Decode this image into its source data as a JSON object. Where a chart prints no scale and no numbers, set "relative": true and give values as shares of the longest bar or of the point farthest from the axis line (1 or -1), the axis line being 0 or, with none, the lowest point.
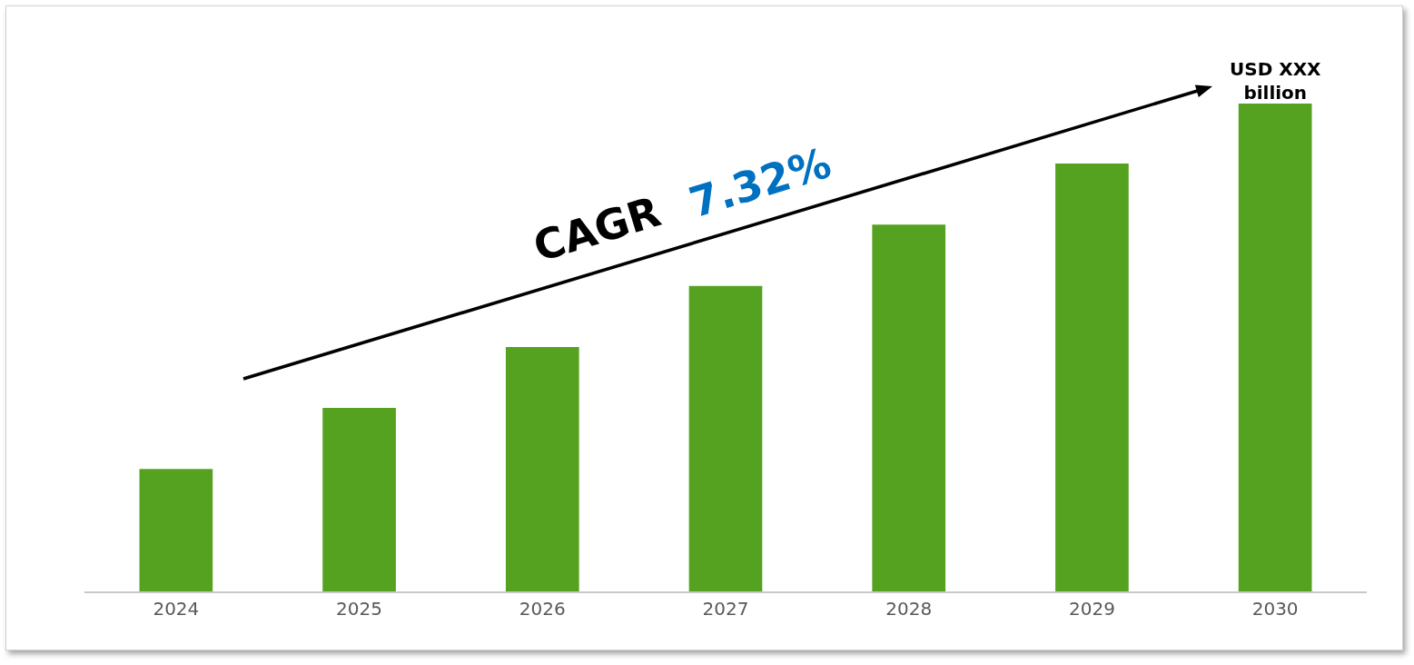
{
  "chart_data": {
    "type": "bar",
    "relative": true,
    "categories": [
      "2024",
      "2025",
      "2026",
      "2027",
      "2028",
      "2029",
      "2030"
    ],
    "values": [
      0.251,
      0.376,
      0.501,
      0.626,
      0.752,
      0.877,
      1
    ],
    "color": "#55a221",
    "grid": false,
    "annotations": [
      "CAGR",
      "7.32%",
      {
        "text": "USD XXX billion",
        "x": "2030",
        "y": 1
      }
    ]
  }
}
